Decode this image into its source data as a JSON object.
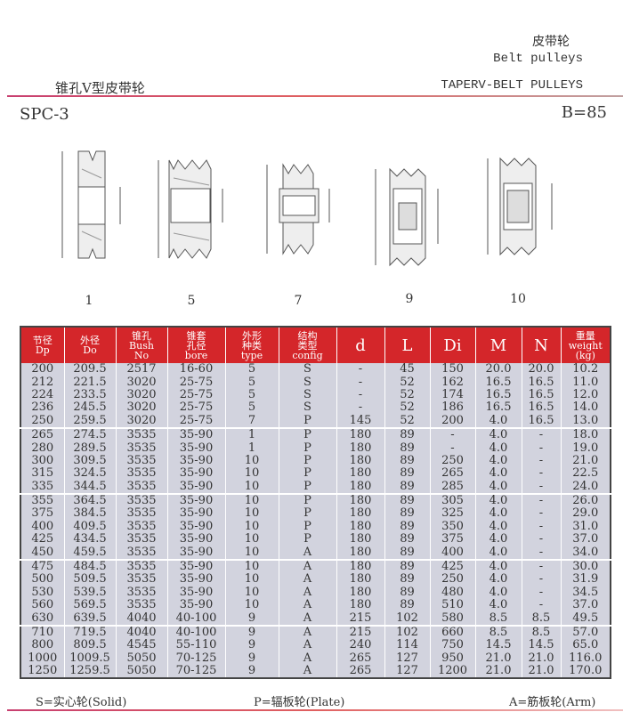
{
  "header": {
    "title_cn": "皮带轮",
    "title_en": "Belt pulleys",
    "subtitle_cn": "锥孔V型皮带轮",
    "subtitle_en": "TAPERV-BELT PULLEYS",
    "series": "SPC-3",
    "b_value": "B=85"
  },
  "figures": [
    {
      "label": "1"
    },
    {
      "label": "5"
    },
    {
      "label": "7"
    },
    {
      "label": "9"
    },
    {
      "label": "10"
    }
  ],
  "table": {
    "headers": [
      [
        "节径",
        "Dp"
      ],
      [
        "外径",
        "Do"
      ],
      [
        "锥孔",
        "Bush",
        "No"
      ],
      [
        "锥套",
        "孔径",
        "bore"
      ],
      [
        "外形",
        "种类",
        "type"
      ],
      [
        "结构",
        "类型",
        "config"
      ],
      [
        "d"
      ],
      [
        "L"
      ],
      [
        "Di"
      ],
      [
        "M"
      ],
      [
        "N"
      ],
      [
        "重量",
        "weight",
        "(kg)"
      ]
    ],
    "rows": [
      [
        "200",
        "209.5",
        "2517",
        "16-60",
        "5",
        "S",
        "-",
        "45",
        "150",
        "20.0",
        "20.0",
        "10.2"
      ],
      [
        "212",
        "221.5",
        "3020",
        "25-75",
        "5",
        "S",
        "-",
        "52",
        "162",
        "16.5",
        "16.5",
        "11.0"
      ],
      [
        "224",
        "233.5",
        "3020",
        "25-75",
        "5",
        "S",
        "-",
        "52",
        "174",
        "16.5",
        "16.5",
        "12.0"
      ],
      [
        "236",
        "245.5",
        "3020",
        "25-75",
        "5",
        "S",
        "-",
        "52",
        "186",
        "16.5",
        "16.5",
        "14.0"
      ],
      [
        "250",
        "259.5",
        "3020",
        "25-75",
        "7",
        "P",
        "145",
        "52",
        "200",
        "4.0",
        "16.5",
        "13.0"
      ],
      [
        "265",
        "274.5",
        "3535",
        "35-90",
        "1",
        "P",
        "180",
        "89",
        "-",
        "4.0",
        "-",
        "18.0"
      ],
      [
        "280",
        "289.5",
        "3535",
        "35-90",
        "1",
        "P",
        "180",
        "89",
        "-",
        "4.0",
        "-",
        "19.0"
      ],
      [
        "300",
        "309.5",
        "3535",
        "35-90",
        "10",
        "P",
        "180",
        "89",
        "250",
        "4.0",
        "-",
        "21.0"
      ],
      [
        "315",
        "324.5",
        "3535",
        "35-90",
        "10",
        "P",
        "180",
        "89",
        "265",
        "4.0",
        "-",
        "22.5"
      ],
      [
        "335",
        "344.5",
        "3535",
        "35-90",
        "10",
        "P",
        "180",
        "89",
        "285",
        "4.0",
        "-",
        "24.0"
      ],
      [
        "355",
        "364.5",
        "3535",
        "35-90",
        "10",
        "P",
        "180",
        "89",
        "305",
        "4.0",
        "-",
        "26.0"
      ],
      [
        "375",
        "384.5",
        "3535",
        "35-90",
        "10",
        "P",
        "180",
        "89",
        "325",
        "4.0",
        "-",
        "29.0"
      ],
      [
        "400",
        "409.5",
        "3535",
        "35-90",
        "10",
        "P",
        "180",
        "89",
        "350",
        "4.0",
        "-",
        "31.0"
      ],
      [
        "425",
        "434.5",
        "3535",
        "35-90",
        "10",
        "P",
        "180",
        "89",
        "375",
        "4.0",
        "-",
        "37.0"
      ],
      [
        "450",
        "459.5",
        "3535",
        "35-90",
        "10",
        "A",
        "180",
        "89",
        "400",
        "4.0",
        "-",
        "34.0"
      ],
      [
        "475",
        "484.5",
        "3535",
        "35-90",
        "10",
        "A",
        "180",
        "89",
        "425",
        "4.0",
        "-",
        "30.0"
      ],
      [
        "500",
        "509.5",
        "3535",
        "35-90",
        "10",
        "A",
        "180",
        "89",
        "250",
        "4.0",
        "-",
        "31.9"
      ],
      [
        "530",
        "539.5",
        "3535",
        "35-90",
        "10",
        "A",
        "180",
        "89",
        "480",
        "4.0",
        "-",
        "34.5"
      ],
      [
        "560",
        "569.5",
        "3535",
        "35-90",
        "10",
        "A",
        "180",
        "89",
        "510",
        "4.0",
        "-",
        "37.0"
      ],
      [
        "630",
        "639.5",
        "4040",
        "40-100",
        "9",
        "A",
        "215",
        "102",
        "580",
        "8.5",
        "8.5",
        "49.5"
      ],
      [
        "710",
        "719.5",
        "4040",
        "40-100",
        "9",
        "A",
        "215",
        "102",
        "660",
        "8.5",
        "8.5",
        "57.0"
      ],
      [
        "800",
        "809.5",
        "4545",
        "55-110",
        "9",
        "A",
        "240",
        "114",
        "750",
        "14.5",
        "14.5",
        "65.0"
      ],
      [
        "1000",
        "1009.5",
        "5050",
        "70-125",
        "9",
        "A",
        "265",
        "127",
        "950",
        "21.0",
        "21.0",
        "116.0"
      ],
      [
        "1250",
        "1259.5",
        "5050",
        "70-125",
        "9",
        "A",
        "265",
        "127",
        "1200",
        "21.0",
        "21.0",
        "170.0"
      ]
    ]
  },
  "legend": {
    "solid": "S=实心轮(Solid)",
    "plate": "P=辐板轮(Plate)",
    "arm": "A=筋板轮(Arm)"
  },
  "colors": {
    "header_red": "#d4262a",
    "row_bg": "#d2d3de",
    "rule": "#c84070"
  }
}
